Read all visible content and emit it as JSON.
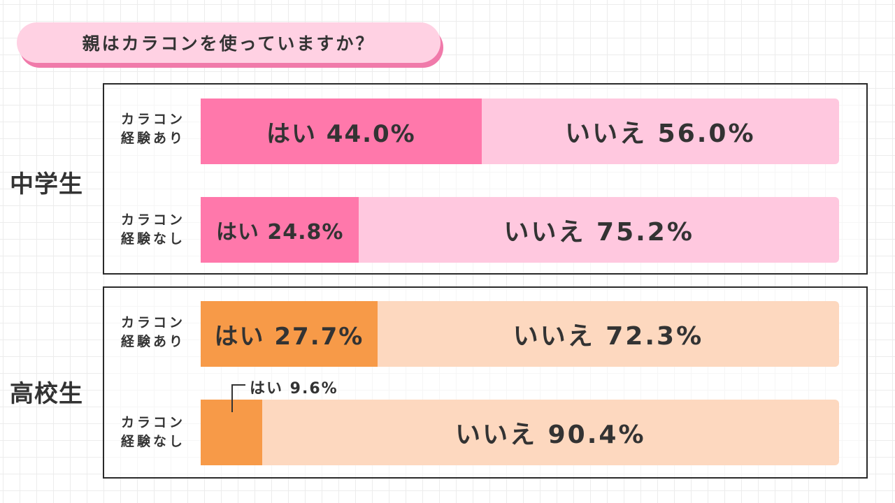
{
  "title": "親はカラコンを使っていますか？",
  "chart_data": {
    "type": "bar",
    "orientation": "horizontal",
    "stacked": true,
    "percent": true,
    "groups": [
      {
        "name": "中学生",
        "rows": [
          {
            "category_lines": [
              "カラコン",
              "経験あり"
            ],
            "yes": 44.0,
            "no": 56.0
          },
          {
            "category_lines": [
              "カラコン",
              "経験なし"
            ],
            "yes": 24.8,
            "no": 75.2
          }
        ]
      },
      {
        "name": "高校生",
        "rows": [
          {
            "category_lines": [
              "カラコン",
              "経験あり"
            ],
            "yes": 27.7,
            "no": 72.3
          },
          {
            "category_lines": [
              "カラコン",
              "経験なし"
            ],
            "yes": 9.6,
            "no": 90.4
          }
        ]
      }
    ],
    "labels": {
      "yes": [
        "はい 44.0%",
        "はい 24.8%",
        "はい 27.7%",
        "はい 9.6%"
      ],
      "no": [
        "いいえ 56.0%",
        "いいえ 75.2%",
        "いいえ 72.3%",
        "いいえ 90.4%"
      ]
    },
    "colors": {
      "junior_yes": "#ff78ab",
      "junior_no": "#ffc8df",
      "senior_yes": "#f79a48",
      "senior_no": "#fdd8bf"
    }
  }
}
